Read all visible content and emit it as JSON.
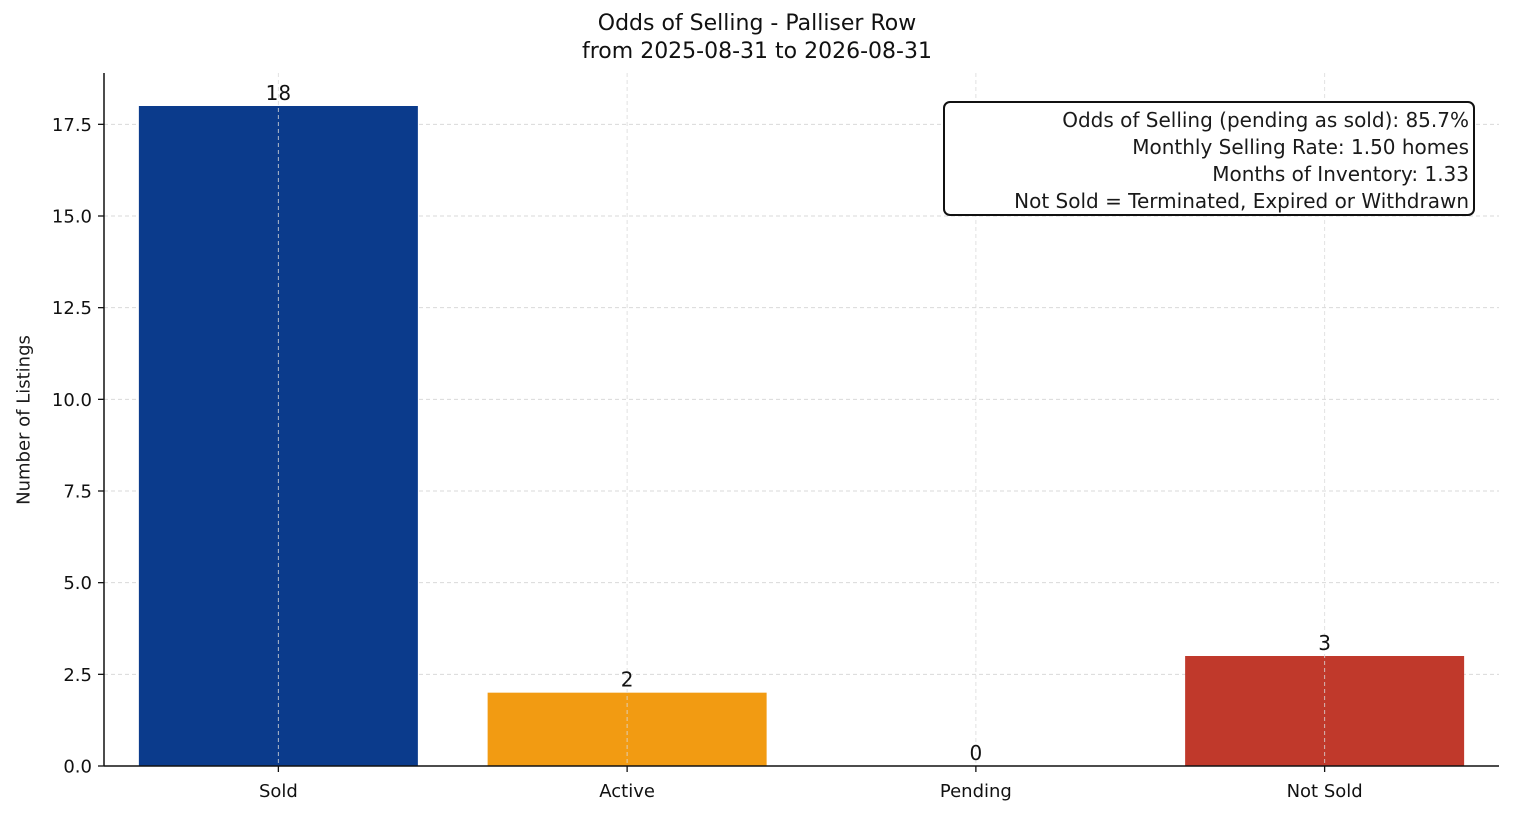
{
  "chart_data": {
    "type": "bar",
    "title": "Odds of Selling - Palliser Row",
    "subtitle": "from 2025-08-31 to 2026-08-31",
    "xlabel": "",
    "ylabel": "Number of Listings",
    "categories": [
      "Sold",
      "Active",
      "Pending",
      "Not Sold"
    ],
    "values": [
      18,
      2,
      0,
      3
    ],
    "colors": [
      "#0b3b8c",
      "#f29b12",
      "#7f7f7f",
      "#c0392b"
    ],
    "ylim": [
      0,
      18.9
    ],
    "yticks": [
      "0.0",
      "2.5",
      "5.0",
      "7.5",
      "10.0",
      "12.5",
      "15.0",
      "17.5"
    ],
    "grid": true,
    "annotation_box": {
      "placement": "top-right",
      "lines": [
        "Odds of Selling (pending as sold): 85.7%",
        "Monthly Selling Rate: 1.50 homes",
        "Months of Inventory: 1.33",
        "Not Sold = Terminated, Expired or Withdrawn"
      ]
    }
  }
}
